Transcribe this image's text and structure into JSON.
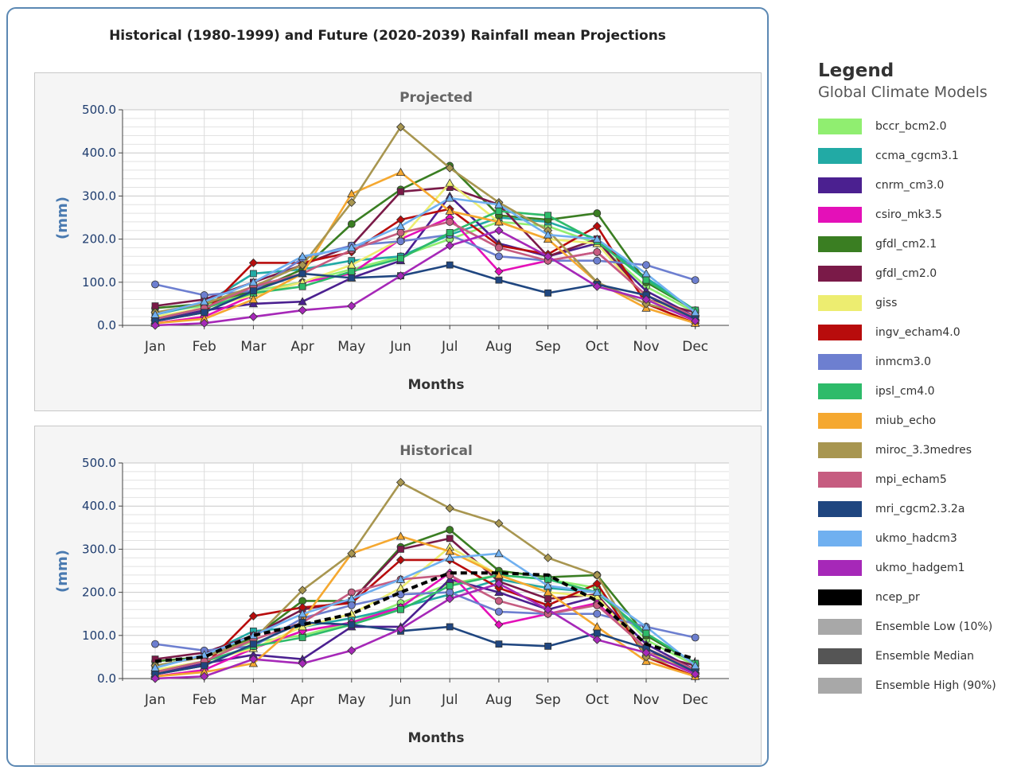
{
  "title": "Historical (1980-1999) and Future (2020-2039) Rainfall mean Projections",
  "legend": {
    "title": "Legend",
    "subtitle": "Global Climate Models",
    "items": [
      {
        "label": "bccr_bcm2.0",
        "color": "#90ee70"
      },
      {
        "label": "ccma_cgcm3.1",
        "color": "#22aaa5"
      },
      {
        "label": "cnrm_cm3.0",
        "color": "#4b2090"
      },
      {
        "label": "csiro_mk3.5",
        "color": "#e410b8"
      },
      {
        "label": "gfdl_cm2.1",
        "color": "#3a7e22"
      },
      {
        "label": "gfdl_cm2.0",
        "color": "#7a1a48"
      },
      {
        "label": "giss",
        "color": "#eded70"
      },
      {
        "label": "ingv_echam4.0",
        "color": "#b80c0c"
      },
      {
        "label": "inmcm3.0",
        "color": "#6d7fd0"
      },
      {
        "label": "ipsl_cm4.0",
        "color": "#2ebb6a"
      },
      {
        "label": "miub_echo",
        "color": "#f5a830"
      },
      {
        "label": "miroc_3.3medres",
        "color": "#a89650"
      },
      {
        "label": "mpi_echam5",
        "color": "#c65c80"
      },
      {
        "label": "mri_cgcm2.3.2a",
        "color": "#1f4680"
      },
      {
        "label": "ukmo_hadcm3",
        "color": "#70b0f0"
      },
      {
        "label": "ukmo_hadgem1",
        "color": "#a628b8"
      },
      {
        "label": "ncep_pr",
        "color": "#000000"
      },
      {
        "label": "Ensemble Low (10%)",
        "color": "#a8a8a8"
      },
      {
        "label": "Ensemble Median",
        "color": "#555555"
      },
      {
        "label": "Ensemble High (90%)",
        "color": "#a8a8a8"
      }
    ]
  },
  "chart_data": [
    {
      "type": "line",
      "title": "Projected",
      "xlabel": "Months",
      "ylabel": "(mm)",
      "ylim": [
        0,
        500
      ],
      "yticks": [
        "0.0",
        "100.0",
        "200.0",
        "300.0",
        "400.0",
        "500.0"
      ],
      "categories": [
        "Jan",
        "Feb",
        "Mar",
        "Apr",
        "May",
        "Jun",
        "Jul",
        "Aug",
        "Sep",
        "Oct",
        "Nov",
        "Dec"
      ],
      "grid": true,
      "series": [
        {
          "name": "bccr_bcm2.0",
          "color": "#90ee70",
          "values": [
            30,
            45,
            80,
            100,
            130,
            160,
            200,
            240,
            230,
            190,
            90,
            30
          ]
        },
        {
          "name": "ccma_cgcm3.1",
          "color": "#22aaa5",
          "values": [
            25,
            50,
            120,
            130,
            150,
            160,
            210,
            250,
            240,
            200,
            110,
            35
          ]
        },
        {
          "name": "cnrm_cm3.0",
          "color": "#4b2090",
          "values": [
            10,
            35,
            50,
            55,
            110,
            150,
            300,
            190,
            160,
            190,
            80,
            20
          ]
        },
        {
          "name": "csiro_mk3.5",
          "color": "#e410b8",
          "values": [
            5,
            20,
            70,
            100,
            120,
            200,
            250,
            125,
            150,
            170,
            70,
            10
          ]
        },
        {
          "name": "gfdl_cm2.1",
          "color": "#3a7e22",
          "values": [
            40,
            50,
            80,
            130,
            235,
            315,
            370,
            255,
            245,
            260,
            100,
            35
          ]
        },
        {
          "name": "gfdl_cm2.0",
          "color": "#7a1a48",
          "values": [
            45,
            60,
            100,
            140,
            185,
            310,
            320,
            280,
            160,
            200,
            60,
            30
          ]
        },
        {
          "name": "giss",
          "color": "#eded70",
          "values": [
            20,
            40,
            70,
            100,
            140,
            200,
            330,
            240,
            200,
            190,
            60,
            20
          ]
        },
        {
          "name": "ingv_echam4.0",
          "color": "#b80c0c",
          "values": [
            10,
            30,
            145,
            145,
            170,
            245,
            270,
            185,
            165,
            230,
            50,
            5
          ]
        },
        {
          "name": "inmcm3.0",
          "color": "#6d7fd0",
          "values": [
            95,
            70,
            80,
            155,
            185,
            195,
            210,
            160,
            150,
            150,
            140,
            105
          ]
        },
        {
          "name": "ipsl_cm4.0",
          "color": "#2ebb6a",
          "values": [
            15,
            40,
            75,
            90,
            125,
            155,
            215,
            265,
            255,
            195,
            105,
            35
          ]
        },
        {
          "name": "miub_echo",
          "color": "#f5a830",
          "values": [
            5,
            15,
            60,
            120,
            305,
            355,
            265,
            240,
            200,
            100,
            40,
            5
          ]
        },
        {
          "name": "miroc_3.3medres",
          "color": "#a89650",
          "values": [
            30,
            50,
            90,
            140,
            285,
            460,
            365,
            285,
            220,
            100,
            50,
            20
          ]
        },
        {
          "name": "mpi_echam5",
          "color": "#c65c80",
          "values": [
            15,
            40,
            90,
            120,
            175,
            215,
            240,
            180,
            150,
            170,
            70,
            20
          ]
        },
        {
          "name": "mri_cgcm2.3.2a",
          "color": "#1f4680",
          "values": [
            10,
            30,
            80,
            120,
            110,
            115,
            140,
            105,
            75,
            95,
            70,
            15
          ]
        },
        {
          "name": "ukmo_hadcm3",
          "color": "#70b0f0",
          "values": [
            25,
            55,
            100,
            160,
            180,
            230,
            295,
            280,
            210,
            200,
            120,
            30
          ]
        },
        {
          "name": "ukmo_hadgem1",
          "color": "#a628b8",
          "values": [
            0,
            5,
            20,
            35,
            45,
            115,
            185,
            220,
            160,
            90,
            60,
            10
          ]
        }
      ]
    },
    {
      "type": "line",
      "title": "Historical",
      "xlabel": "Months",
      "ylabel": "(mm)",
      "ylim": [
        0,
        500
      ],
      "yticks": [
        "0.0",
        "100.0",
        "200.0",
        "300.0",
        "400.0",
        "500.0"
      ],
      "categories": [
        "Jan",
        "Feb",
        "Mar",
        "Apr",
        "May",
        "Jun",
        "Jul",
        "Aug",
        "Sep",
        "Oct",
        "Nov",
        "Dec"
      ],
      "grid": true,
      "series": [
        {
          "name": "bccr_bcm2.0",
          "color": "#90ee70",
          "values": [
            30,
            50,
            85,
            100,
            130,
            175,
            220,
            240,
            230,
            210,
            90,
            30
          ]
        },
        {
          "name": "ccma_cgcm3.1",
          "color": "#22aaa5",
          "values": [
            25,
            55,
            110,
            120,
            140,
            165,
            195,
            230,
            210,
            200,
            100,
            35
          ]
        },
        {
          "name": "cnrm_cm3.0",
          "color": "#4b2090",
          "values": [
            10,
            35,
            55,
            45,
            120,
            120,
            230,
            200,
            160,
            190,
            80,
            20
          ]
        },
        {
          "name": "csiro_mk3.5",
          "color": "#e410b8",
          "values": [
            5,
            20,
            70,
            110,
            130,
            165,
            245,
            125,
            150,
            175,
            70,
            10
          ]
        },
        {
          "name": "gfdl_cm2.1",
          "color": "#3a7e22",
          "values": [
            40,
            50,
            95,
            180,
            180,
            305,
            345,
            250,
            235,
            240,
            100,
            35
          ]
        },
        {
          "name": "gfdl_cm2.0",
          "color": "#7a1a48",
          "values": [
            45,
            60,
            100,
            160,
            180,
            300,
            325,
            225,
            185,
            195,
            60,
            30
          ]
        },
        {
          "name": "giss",
          "color": "#eded70",
          "values": [
            20,
            40,
            70,
            120,
            150,
            210,
            305,
            240,
            200,
            190,
            60,
            20
          ]
        },
        {
          "name": "ingv_echam4.0",
          "color": "#b80c0c",
          "values": [
            10,
            30,
            145,
            165,
            175,
            275,
            275,
            210,
            170,
            220,
            50,
            5
          ]
        },
        {
          "name": "inmcm3.0",
          "color": "#6d7fd0",
          "values": [
            80,
            65,
            75,
            140,
            170,
            195,
            200,
            155,
            150,
            150,
            120,
            95
          ]
        },
        {
          "name": "ipsl_cm4.0",
          "color": "#2ebb6a",
          "values": [
            15,
            40,
            75,
            95,
            125,
            160,
            215,
            240,
            230,
            200,
            105,
            35
          ]
        },
        {
          "name": "miub_echo",
          "color": "#f5a830",
          "values": [
            5,
            15,
            35,
            135,
            290,
            330,
            295,
            240,
            200,
            120,
            40,
            5
          ]
        },
        {
          "name": "miroc_3.3medres",
          "color": "#a89650",
          "values": [
            30,
            50,
            90,
            205,
            290,
            455,
            395,
            360,
            280,
            240,
            50,
            20
          ]
        },
        {
          "name": "mpi_echam5",
          "color": "#c65c80",
          "values": [
            15,
            40,
            90,
            130,
            200,
            230,
            240,
            180,
            150,
            170,
            70,
            20
          ]
        },
        {
          "name": "mri_cgcm2.3.2a",
          "color": "#1f4680",
          "values": [
            10,
            30,
            80,
            130,
            125,
            110,
            120,
            80,
            75,
            105,
            70,
            15
          ]
        },
        {
          "name": "ukmo_hadcm3",
          "color": "#70b0f0",
          "values": [
            25,
            55,
            100,
            150,
            185,
            230,
            280,
            290,
            215,
            200,
            120,
            30
          ]
        },
        {
          "name": "ukmo_hadgem1",
          "color": "#a628b8",
          "values": [
            0,
            5,
            45,
            35,
            65,
            115,
            185,
            220,
            160,
            90,
            60,
            10
          ]
        },
        {
          "name": "ncep_pr",
          "color": "#000000",
          "dashed": true,
          "values": [
            40,
            50,
            100,
            125,
            150,
            200,
            245,
            245,
            240,
            180,
            80,
            45
          ]
        }
      ]
    }
  ]
}
